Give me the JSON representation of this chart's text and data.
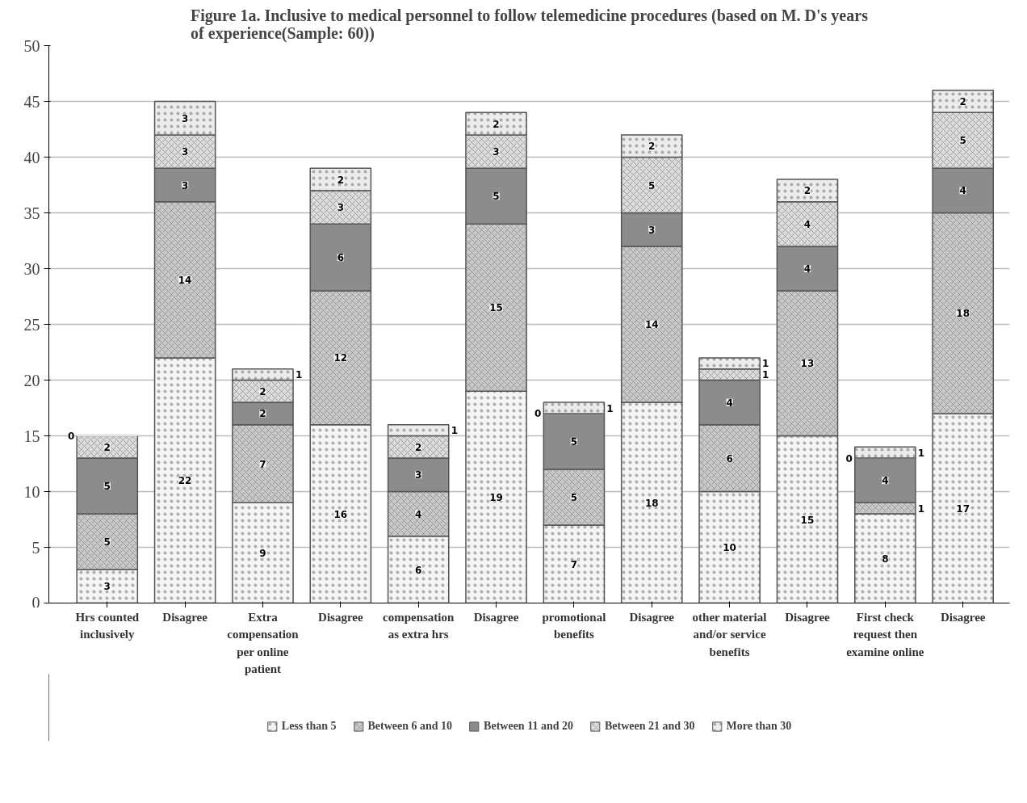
{
  "chart_data": {
    "type": "bar",
    "title": "Figure 1a. Inclusive to medical personnel to follow telemedicine procedures (based on M. D's years of experience(Sample: 60))",
    "categories": [
      "Hrs counted inclusively",
      "Disagree",
      "Extra compensation per online patient",
      "Disagree",
      "compensation as extra hrs",
      "Disagree",
      "promotional benefits",
      "Disagree",
      "other material and/or service benefits",
      "Disagree",
      "First check request then examine online",
      "Disagree"
    ],
    "stacked": true,
    "data_labels": true,
    "grid": "y",
    "legend": "bottom",
    "ylim": [
      0,
      50
    ],
    "yticks": [
      0,
      5,
      10,
      15,
      20,
      25,
      30,
      35,
      40,
      45,
      50
    ],
    "series": [
      {
        "name": "Less than 5",
        "color": "#f4f4f4",
        "values": [
          3,
          22,
          9,
          16,
          6,
          19,
          7,
          18,
          10,
          15,
          8,
          17
        ]
      },
      {
        "name": "Between 6 and 10",
        "color": "#c8c8c8",
        "values": [
          5,
          14,
          7,
          12,
          4,
          15,
          5,
          14,
          6,
          13,
          1,
          18
        ]
      },
      {
        "name": "Between 11 and 20",
        "color": "#8c8c8c",
        "values": [
          5,
          3,
          2,
          6,
          3,
          5,
          5,
          3,
          4,
          4,
          4,
          4
        ]
      },
      {
        "name": "Between 21 and 30",
        "color": "#dcdcdc",
        "values": [
          2,
          3,
          2,
          3,
          2,
          3,
          0,
          5,
          1,
          4,
          0,
          5
        ]
      },
      {
        "name": "More than 30",
        "color": "#ececec",
        "values": [
          0,
          3,
          1,
          2,
          1,
          2,
          1,
          2,
          1,
          2,
          1,
          2
        ]
      }
    ]
  }
}
